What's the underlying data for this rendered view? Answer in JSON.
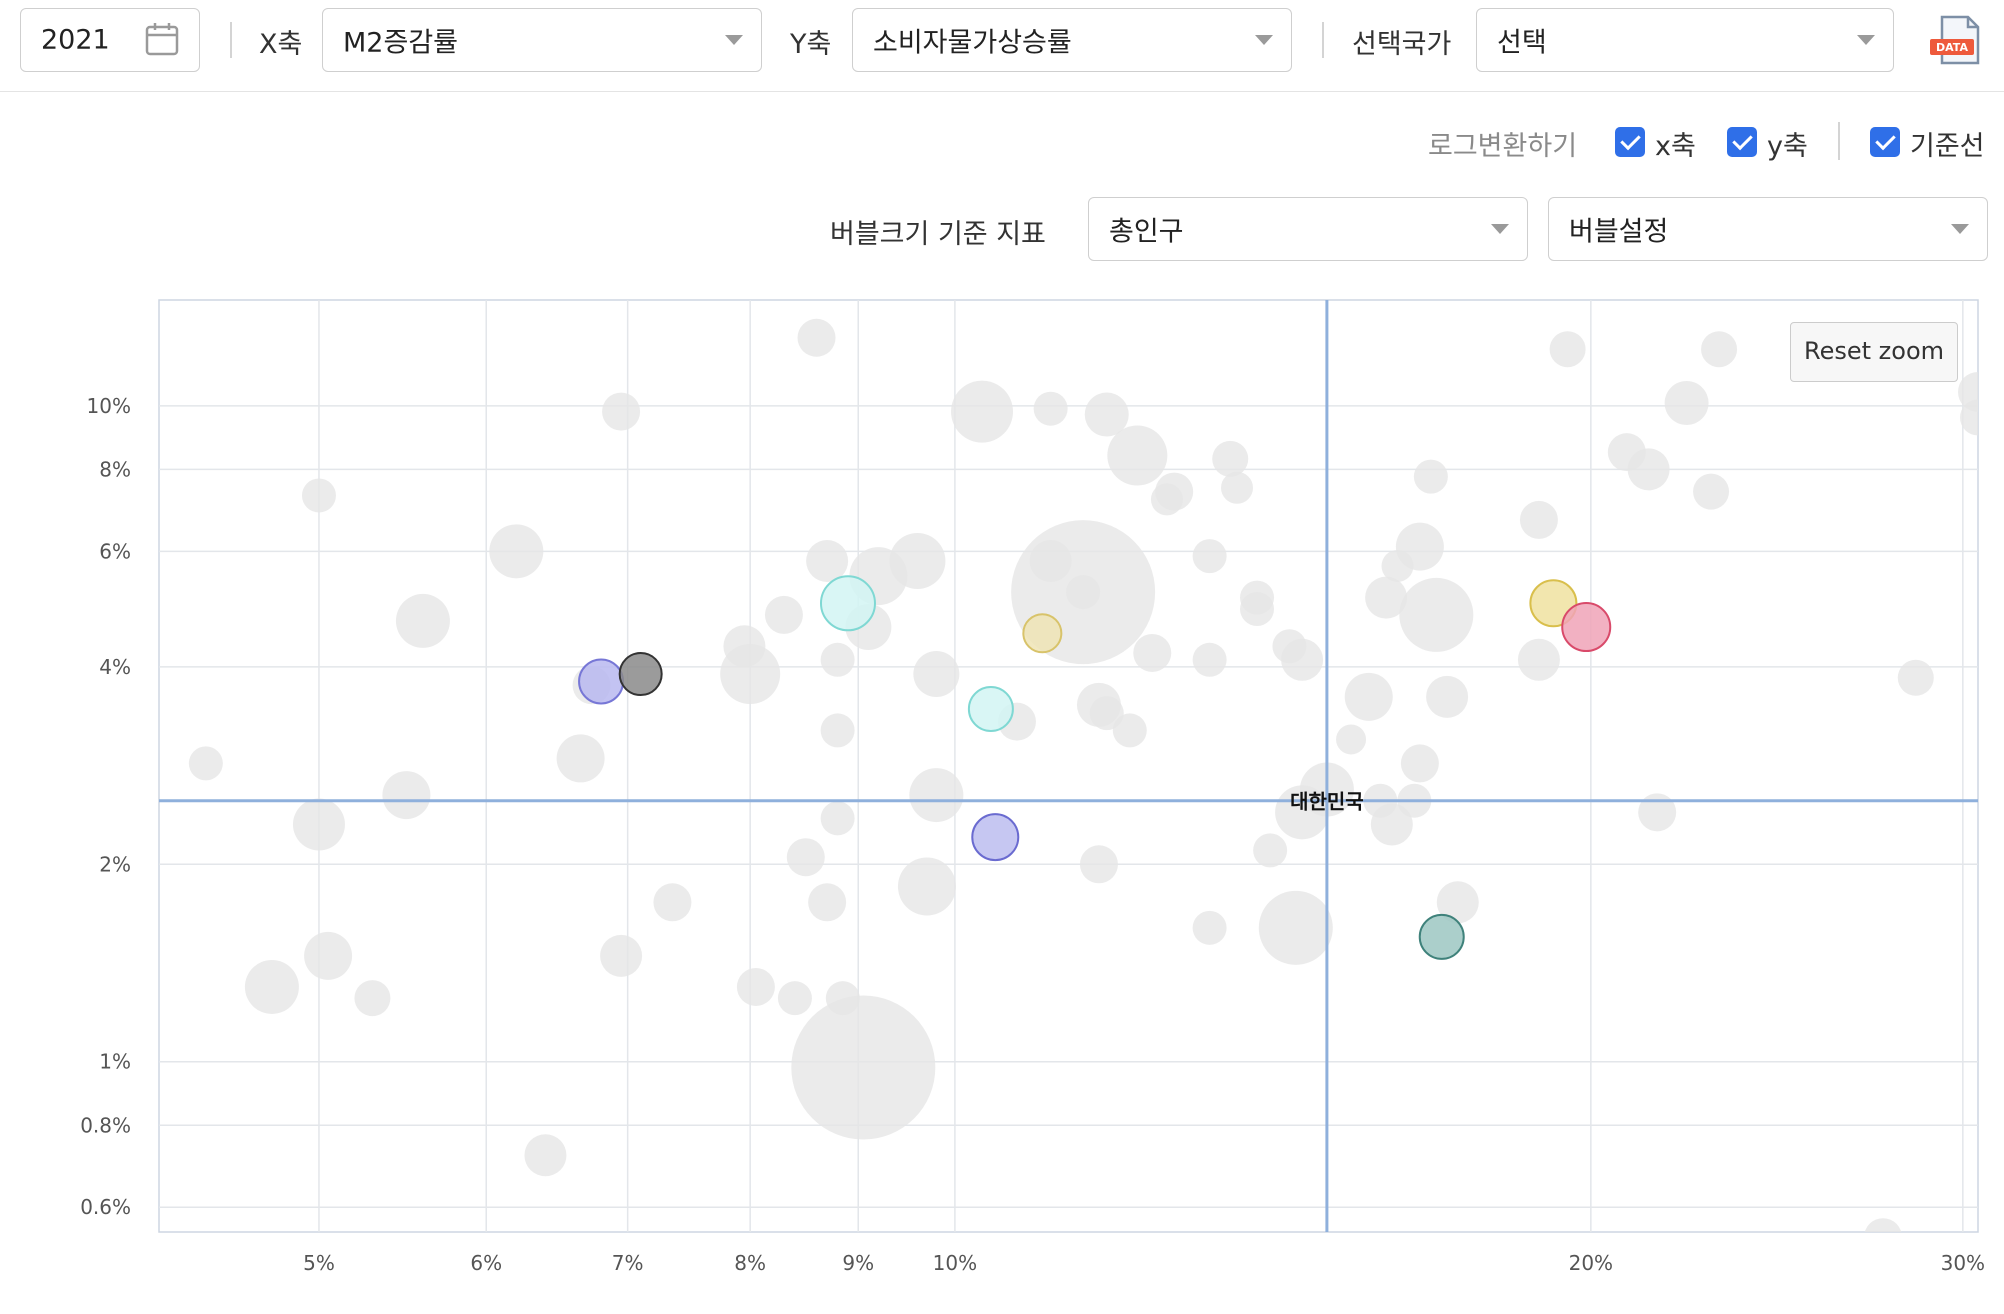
{
  "toolbar": {
    "year": "2021",
    "x_label": "X축",
    "x_select": "M2증감률",
    "y_label": "Y축",
    "y_select": "소비자물가상승률",
    "country_label": "선택국가",
    "country_select": "선택",
    "data_icon_text": "DATA"
  },
  "options": {
    "log_label": "로그변환하기",
    "x_axis": "x축",
    "y_axis": "y축",
    "baseline": "기준선",
    "x_checked": true,
    "y_checked": true,
    "baseline_checked": true,
    "bubble_size_label": "버블크기 기준 지표",
    "bubble_size_select": "총인구",
    "bubble_settings_select": "버블설정"
  },
  "reset_zoom": "Reset zoom",
  "colors": {
    "grid": "#e3e6ea",
    "baseline": "#8fb0dc",
    "gray_bubble": "#e6e6e6",
    "check": "#2f6fe8"
  },
  "chart_data": {
    "type": "scatter",
    "x_scale": "log",
    "y_scale": "log",
    "xlim": [
      4.2,
      30.5
    ],
    "ylim": [
      0.55,
      14.5
    ],
    "x_ticks": [
      {
        "v": 5,
        "label": "5%"
      },
      {
        "v": 6,
        "label": "6%"
      },
      {
        "v": 7,
        "label": "7%"
      },
      {
        "v": 8,
        "label": "8%"
      },
      {
        "v": 9,
        "label": "9%"
      },
      {
        "v": 10,
        "label": "10%"
      },
      {
        "v": 20,
        "label": "20%"
      },
      {
        "v": 30,
        "label": "30%"
      }
    ],
    "x_grid_only": [
      15
    ],
    "y_ticks": [
      {
        "v": 0.6,
        "label": "0.6%"
      },
      {
        "v": 0.8,
        "label": "0.8%"
      },
      {
        "v": 1,
        "label": "1%"
      },
      {
        "v": 2,
        "label": "2%"
      },
      {
        "v": 4,
        "label": "4%"
      },
      {
        "v": 6,
        "label": "6%"
      },
      {
        "v": 8,
        "label": "8%"
      },
      {
        "v": 10,
        "label": "10%"
      }
    ],
    "baseline": {
      "x": 15,
      "y": 2.5,
      "label": "대한민국"
    },
    "series": [
      {
        "color": "#dcdcdc",
        "points": [
          {
            "x": 8.6,
            "y": 12.7,
            "r": 19
          },
          {
            "x": 6.95,
            "y": 9.8,
            "r": 19
          },
          {
            "x": 5.0,
            "y": 7.3,
            "r": 17
          },
          {
            "x": 10.3,
            "y": 9.8,
            "r": 31
          },
          {
            "x": 11.1,
            "y": 9.9,
            "r": 17
          },
          {
            "x": 11.8,
            "y": 9.7,
            "r": 22
          },
          {
            "x": 12.2,
            "y": 8.4,
            "r": 30
          },
          {
            "x": 12.7,
            "y": 7.4,
            "r": 19
          },
          {
            "x": 13.5,
            "y": 8.3,
            "r": 18
          },
          {
            "x": 13.6,
            "y": 7.5,
            "r": 16
          },
          {
            "x": 12.6,
            "y": 7.2,
            "r": 16
          },
          {
            "x": 16.8,
            "y": 7.8,
            "r": 17
          },
          {
            "x": 19.5,
            "y": 12.2,
            "r": 18
          },
          {
            "x": 23.0,
            "y": 12.2,
            "r": 18
          },
          {
            "x": 22.2,
            "y": 10.1,
            "r": 22
          },
          {
            "x": 20.8,
            "y": 8.5,
            "r": 19
          },
          {
            "x": 21.3,
            "y": 8.0,
            "r": 21
          },
          {
            "x": 22.8,
            "y": 7.4,
            "r": 18
          },
          {
            "x": 30.5,
            "y": 10.5,
            "r": 20
          },
          {
            "x": 30.5,
            "y": 9.6,
            "r": 18
          },
          {
            "x": 18.9,
            "y": 6.7,
            "r": 19
          },
          {
            "x": 16.6,
            "y": 6.1,
            "r": 24
          },
          {
            "x": 16.2,
            "y": 5.7,
            "r": 16
          },
          {
            "x": 13.2,
            "y": 5.9,
            "r": 17
          },
          {
            "x": 13.9,
            "y": 5.1,
            "r": 17
          },
          {
            "x": 13.9,
            "y": 4.9,
            "r": 17
          },
          {
            "x": 16.0,
            "y": 5.1,
            "r": 21
          },
          {
            "x": 16.9,
            "y": 4.8,
            "r": 37
          },
          {
            "x": 14.4,
            "y": 4.3,
            "r": 17
          },
          {
            "x": 14.6,
            "y": 4.1,
            "r": 21
          },
          {
            "x": 15.7,
            "y": 3.6,
            "r": 24
          },
          {
            "x": 17.1,
            "y": 3.6,
            "r": 21
          },
          {
            "x": 18.9,
            "y": 4.1,
            "r": 21
          },
          {
            "x": 15.4,
            "y": 3.1,
            "r": 15
          },
          {
            "x": 16.6,
            "y": 2.85,
            "r": 19
          },
          {
            "x": 11.5,
            "y": 5.2,
            "r": 72
          },
          {
            "x": 11.1,
            "y": 5.8,
            "r": 21
          },
          {
            "x": 11.5,
            "y": 5.2,
            "r": 17
          },
          {
            "x": 12.4,
            "y": 4.2,
            "r": 19
          },
          {
            "x": 13.2,
            "y": 4.1,
            "r": 17
          },
          {
            "x": 11.7,
            "y": 3.5,
            "r": 22
          },
          {
            "x": 11.8,
            "y": 3.4,
            "r": 17
          },
          {
            "x": 12.1,
            "y": 3.2,
            "r": 17
          },
          {
            "x": 10.7,
            "y": 3.3,
            "r": 19
          },
          {
            "x": 9.6,
            "y": 5.8,
            "r": 28
          },
          {
            "x": 9.2,
            "y": 5.5,
            "r": 29
          },
          {
            "x": 8.7,
            "y": 5.8,
            "r": 21
          },
          {
            "x": 9.1,
            "y": 4.6,
            "r": 23
          },
          {
            "x": 8.8,
            "y": 4.1,
            "r": 17
          },
          {
            "x": 9.8,
            "y": 3.9,
            "r": 23
          },
          {
            "x": 8.8,
            "y": 3.2,
            "r": 17
          },
          {
            "x": 8.3,
            "y": 4.8,
            "r": 19
          },
          {
            "x": 7.95,
            "y": 4.3,
            "r": 21
          },
          {
            "x": 8.0,
            "y": 3.9,
            "r": 30
          },
          {
            "x": 6.2,
            "y": 6.0,
            "r": 27
          },
          {
            "x": 5.6,
            "y": 4.7,
            "r": 27
          },
          {
            "x": 6.73,
            "y": 3.75,
            "r": 19
          },
          {
            "x": 6.65,
            "y": 2.9,
            "r": 24
          },
          {
            "x": 4.42,
            "y": 2.85,
            "r": 17
          },
          {
            "x": 5.5,
            "y": 2.55,
            "r": 24
          },
          {
            "x": 5.0,
            "y": 2.3,
            "r": 26
          },
          {
            "x": 9.8,
            "y": 2.55,
            "r": 27
          },
          {
            "x": 8.8,
            "y": 2.35,
            "r": 17
          },
          {
            "x": 8.5,
            "y": 2.05,
            "r": 19
          },
          {
            "x": 8.7,
            "y": 1.75,
            "r": 19
          },
          {
            "x": 7.35,
            "y": 1.75,
            "r": 19
          },
          {
            "x": 9.7,
            "y": 1.85,
            "r": 29
          },
          {
            "x": 11.7,
            "y": 2.0,
            "r": 19
          },
          {
            "x": 15.0,
            "y": 2.6,
            "r": 27
          },
          {
            "x": 14.6,
            "y": 2.4,
            "r": 27
          },
          {
            "x": 15.9,
            "y": 2.5,
            "r": 17
          },
          {
            "x": 16.5,
            "y": 2.5,
            "r": 17
          },
          {
            "x": 16.1,
            "y": 2.3,
            "r": 21
          },
          {
            "x": 14.1,
            "y": 2.1,
            "r": 17
          },
          {
            "x": 17.3,
            "y": 1.75,
            "r": 21
          },
          {
            "x": 21.5,
            "y": 2.4,
            "r": 19
          },
          {
            "x": 28.5,
            "y": 3.85,
            "r": 18
          },
          {
            "x": 14.5,
            "y": 1.6,
            "r": 37
          },
          {
            "x": 13.2,
            "y": 1.6,
            "r": 17
          },
          {
            "x": 5.05,
            "y": 1.45,
            "r": 24
          },
          {
            "x": 4.75,
            "y": 1.3,
            "r": 27
          },
          {
            "x": 5.3,
            "y": 1.25,
            "r": 18
          },
          {
            "x": 6.95,
            "y": 1.45,
            "r": 21
          },
          {
            "x": 8.05,
            "y": 1.3,
            "r": 19
          },
          {
            "x": 8.4,
            "y": 1.25,
            "r": 17
          },
          {
            "x": 8.85,
            "y": 1.25,
            "r": 17
          },
          {
            "x": 9.05,
            "y": 0.98,
            "r": 72
          },
          {
            "x": 6.4,
            "y": 0.72,
            "r": 21
          },
          {
            "x": 27.5,
            "y": 0.54,
            "r": 19
          }
        ]
      },
      {
        "color": "highlight",
        "points": [
          {
            "x": 6.8,
            "y": 3.8,
            "r": 22,
            "fill": "#b9b9f0",
            "stroke": "#7777d6"
          },
          {
            "x": 7.1,
            "y": 3.9,
            "r": 21,
            "fill": "#8a8a8a",
            "stroke": "#333333"
          },
          {
            "x": 8.9,
            "y": 5.0,
            "r": 27,
            "fill": "#d2f4f3",
            "stroke": "#7fd8d3"
          },
          {
            "x": 10.4,
            "y": 3.45,
            "r": 22,
            "fill": "#d2f4f3",
            "stroke": "#7fd8d3"
          },
          {
            "x": 11.0,
            "y": 4.5,
            "r": 19,
            "fill": "#efe4b5",
            "stroke": "#d8c36a"
          },
          {
            "x": 10.45,
            "y": 2.2,
            "r": 23,
            "fill": "#bcbdf0",
            "stroke": "#6a6bd0"
          },
          {
            "x": 19.2,
            "y": 5.0,
            "r": 23,
            "fill": "#f0e2a0",
            "stroke": "#d9bf4c"
          },
          {
            "x": 19.9,
            "y": 4.6,
            "r": 24,
            "fill": "#f0a3b7",
            "stroke": "#d94a6a"
          },
          {
            "x": 17.0,
            "y": 1.55,
            "r": 22,
            "fill": "#9cc7c2",
            "stroke": "#3f827b"
          }
        ]
      }
    ]
  }
}
